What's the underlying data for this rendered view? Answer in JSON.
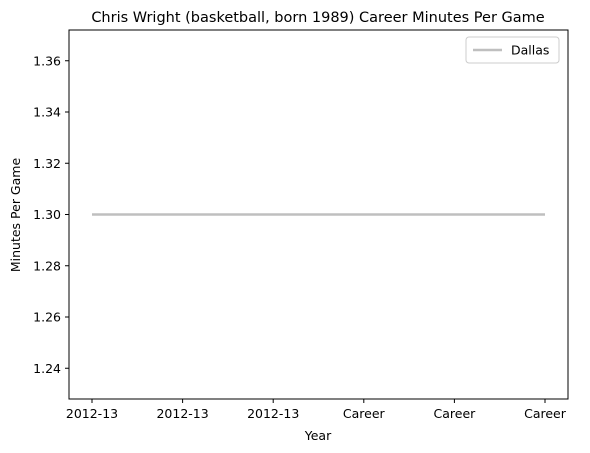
{
  "chart_data": {
    "type": "line",
    "title": "Chris Wright (basketball, born 1989) Career Minutes Per Game",
    "xlabel": "Year",
    "ylabel": "Minutes Per Game",
    "categories": [
      "2012-13",
      "2012-13",
      "2012-13",
      "Career",
      "Career",
      "Career"
    ],
    "series": [
      {
        "name": "Dallas",
        "values": [
          1.3,
          1.3,
          1.3,
          1.3,
          1.3,
          1.3
        ],
        "color": "#bfbfbf"
      }
    ],
    "ylim": [
      1.228,
      1.372
    ],
    "yticks": [
      1.24,
      1.26,
      1.28,
      1.3,
      1.32,
      1.34,
      1.36
    ],
    "ytick_labels": [
      "1.24",
      "1.26",
      "1.28",
      "1.30",
      "1.32",
      "1.34",
      "1.36"
    ],
    "grid": false,
    "legend_position": "top-right"
  }
}
